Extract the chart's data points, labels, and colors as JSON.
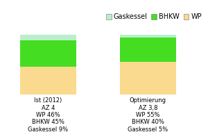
{
  "categories": [
    "Ist (2012)\nAZ 4\nWP 46%\nBHKW 45%\nGaskessel 9%",
    "Optimierung\nAZ 3,8\nWP 55%\nBHKW 40%\nGaskessel 5%"
  ],
  "wp_values": [
    46,
    55
  ],
  "bhkw_values": [
    45,
    40
  ],
  "gaskessel_values": [
    9,
    5
  ],
  "wp_color": "#FADA8E",
  "bhkw_color": "#44DD22",
  "gaskessel_color": "#BBEECC",
  "bar_width": 0.28,
  "ylim": [
    0,
    130
  ],
  "legend_labels": [
    "Gaskessel",
    "BHKW",
    "WP"
  ],
  "legend_colors": [
    "#BBEECC",
    "#44DD22",
    "#FADA8E"
  ],
  "background_color": "#ffffff",
  "grid_color": "#cccccc",
  "tick_fontsize": 6,
  "legend_fontsize": 7
}
